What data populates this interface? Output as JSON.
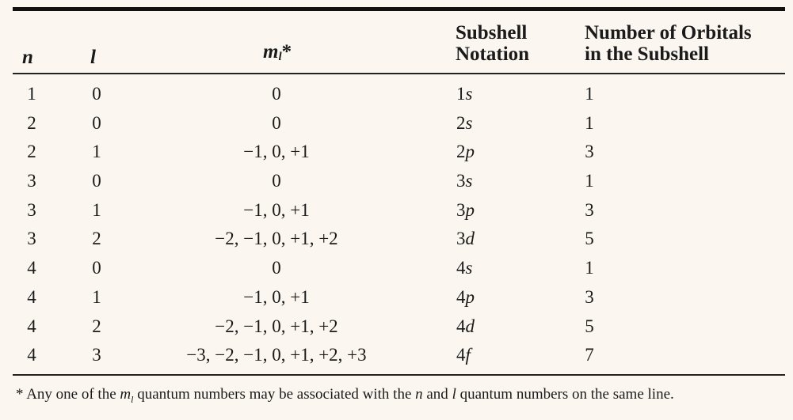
{
  "header": {
    "col_n": "n",
    "col_l": "l",
    "col_ml": "m",
    "col_ml_sub": "l",
    "col_ml_star": "*",
    "col_subshell_line1": "Subshell",
    "col_subshell_line2": "Notation",
    "col_orbitals_line1": "Number of Orbitals",
    "col_orbitals_line2": "in the Subshell"
  },
  "rows": [
    {
      "n": "1",
      "l": "0",
      "ml": "0",
      "sub_num": "1",
      "sub_letter": "s",
      "orbitals": "1"
    },
    {
      "n": "2",
      "l": "0",
      "ml": "0",
      "sub_num": "2",
      "sub_letter": "s",
      "orbitals": "1"
    },
    {
      "n": "2",
      "l": "1",
      "ml": "−1, 0, +1",
      "sub_num": "2",
      "sub_letter": "p",
      "orbitals": "3"
    },
    {
      "n": "3",
      "l": "0",
      "ml": "0",
      "sub_num": "3",
      "sub_letter": "s",
      "orbitals": "1"
    },
    {
      "n": "3",
      "l": "1",
      "ml": "−1, 0, +1",
      "sub_num": "3",
      "sub_letter": "p",
      "orbitals": "3"
    },
    {
      "n": "3",
      "l": "2",
      "ml": "−2, −1, 0, +1, +2",
      "sub_num": "3",
      "sub_letter": "d",
      "orbitals": "5"
    },
    {
      "n": "4",
      "l": "0",
      "ml": "0",
      "sub_num": "4",
      "sub_letter": "s",
      "orbitals": "1"
    },
    {
      "n": "4",
      "l": "1",
      "ml": "−1, 0, +1",
      "sub_num": "4",
      "sub_letter": "p",
      "orbitals": "3"
    },
    {
      "n": "4",
      "l": "2",
      "ml": "−2, −1, 0, +1, +2",
      "sub_num": "4",
      "sub_letter": "d",
      "orbitals": "5"
    },
    {
      "n": "4",
      "l": "3",
      "ml": "−3, −2, −1, 0, +1, +2, +3",
      "sub_num": "4",
      "sub_letter": "f",
      "orbitals": "7"
    }
  ],
  "footnote": {
    "star": "*",
    "part1": "Any one of the ",
    "m": "m",
    "m_sub": "l",
    "part2": " quantum numbers may be associated with the ",
    "n": "n",
    "part3": " and ",
    "l": "l",
    "part4": " quantum numbers on the same line."
  }
}
